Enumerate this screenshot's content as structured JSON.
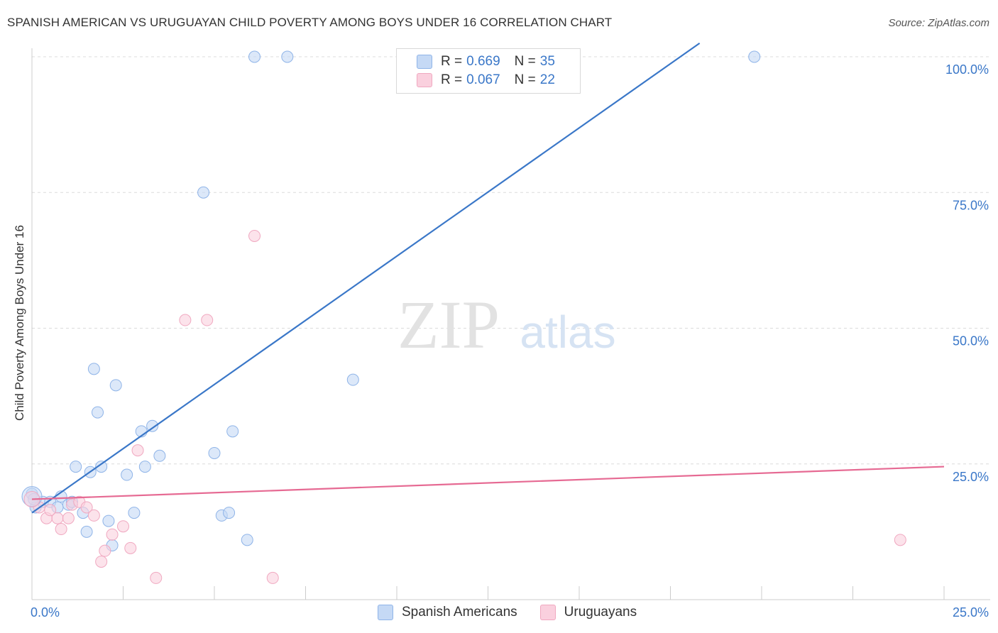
{
  "header": {
    "title": "SPANISH AMERICAN VS URUGUAYAN CHILD POVERTY AMONG BOYS UNDER 16 CORRELATION CHART",
    "source": "Source: ZipAtlas.com"
  },
  "watermark": {
    "zip": "ZIP",
    "atlas": "atlas"
  },
  "legend": {
    "r_label": "R =",
    "n_label": "N =",
    "series": [
      {
        "r": "0.669",
        "n": "35"
      },
      {
        "r": "0.067",
        "n": "22"
      }
    ]
  },
  "chart_data": {
    "type": "scatter",
    "title": "SPANISH AMERICAN VS URUGUAYAN CHILD POVERTY AMONG BOYS UNDER 16 CORRELATION CHART",
    "xlabel": "",
    "ylabel": "Child Poverty Among Boys Under 16",
    "xlim": [
      0,
      25
    ],
    "ylim": [
      0,
      100
    ],
    "x_tick_labels": [
      {
        "value": 0,
        "label": "0.0%"
      },
      {
        "value": 25,
        "label": "25.0%"
      }
    ],
    "y_tick_labels": [
      {
        "value": 25,
        "label": "25.0%"
      },
      {
        "value": 50,
        "label": "50.0%"
      },
      {
        "value": 75,
        "label": "75.0%"
      },
      {
        "value": 100,
        "label": "100.0%"
      }
    ],
    "grid": true,
    "legend_position": "top-center",
    "series": [
      {
        "name": "Spanish Americans",
        "color": "#8fb4e8",
        "fill": "#c5d9f5",
        "trendline": {
          "color": "#3a77c8",
          "x": [
            0,
            18.3
          ],
          "y": [
            16.0,
            102.5
          ]
        },
        "points": [
          [
            0.0,
            19.5
          ],
          [
            0.1,
            17.0
          ],
          [
            0.3,
            18.0
          ],
          [
            0.5,
            18.0
          ],
          [
            0.7,
            17.0
          ],
          [
            0.8,
            19.0
          ],
          [
            1.0,
            17.5
          ],
          [
            1.1,
            18.0
          ],
          [
            1.2,
            24.5
          ],
          [
            1.4,
            16.0
          ],
          [
            1.5,
            12.5
          ],
          [
            1.6,
            23.5
          ],
          [
            1.7,
            42.5
          ],
          [
            1.8,
            34.5
          ],
          [
            1.9,
            24.5
          ],
          [
            2.1,
            14.5
          ],
          [
            2.2,
            10.0
          ],
          [
            2.3,
            39.5
          ],
          [
            2.6,
            23.0
          ],
          [
            2.8,
            16.0
          ],
          [
            3.0,
            31.0
          ],
          [
            3.1,
            24.5
          ],
          [
            3.3,
            32.0
          ],
          [
            3.5,
            26.5
          ],
          [
            4.7,
            75.0
          ],
          [
            5.0,
            27.0
          ],
          [
            5.2,
            15.5
          ],
          [
            5.4,
            16.0
          ],
          [
            5.5,
            31.0
          ],
          [
            5.9,
            11.0
          ],
          [
            6.1,
            100.0
          ],
          [
            7.0,
            100.0
          ],
          [
            8.8,
            40.5
          ],
          [
            19.8,
            100.0
          ],
          [
            0.05,
            18.5
          ]
        ]
      },
      {
        "name": "Uruguayans",
        "color": "#f0a8c0",
        "fill": "#fad0de",
        "trendline": {
          "color": "#e66a93",
          "x": [
            0,
            25
          ],
          "y": [
            18.5,
            24.5
          ]
        },
        "points": [
          [
            0.2,
            17.0
          ],
          [
            0.4,
            15.0
          ],
          [
            0.5,
            16.5
          ],
          [
            0.7,
            15.0
          ],
          [
            0.8,
            13.0
          ],
          [
            1.0,
            15.0
          ],
          [
            1.1,
            17.5
          ],
          [
            1.3,
            18.0
          ],
          [
            1.5,
            17.0
          ],
          [
            1.7,
            15.5
          ],
          [
            1.9,
            7.0
          ],
          [
            2.0,
            9.0
          ],
          [
            2.2,
            12.0
          ],
          [
            2.5,
            13.5
          ],
          [
            2.7,
            9.5
          ],
          [
            2.9,
            27.5
          ],
          [
            3.4,
            4.0
          ],
          [
            4.2,
            51.5
          ],
          [
            4.8,
            51.5
          ],
          [
            6.1,
            67.0
          ],
          [
            6.6,
            4.0
          ],
          [
            23.8,
            11.0
          ]
        ]
      }
    ]
  },
  "bottom_legend": {
    "items": [
      {
        "label": "Spanish Americans"
      },
      {
        "label": "Uruguayans"
      }
    ]
  }
}
